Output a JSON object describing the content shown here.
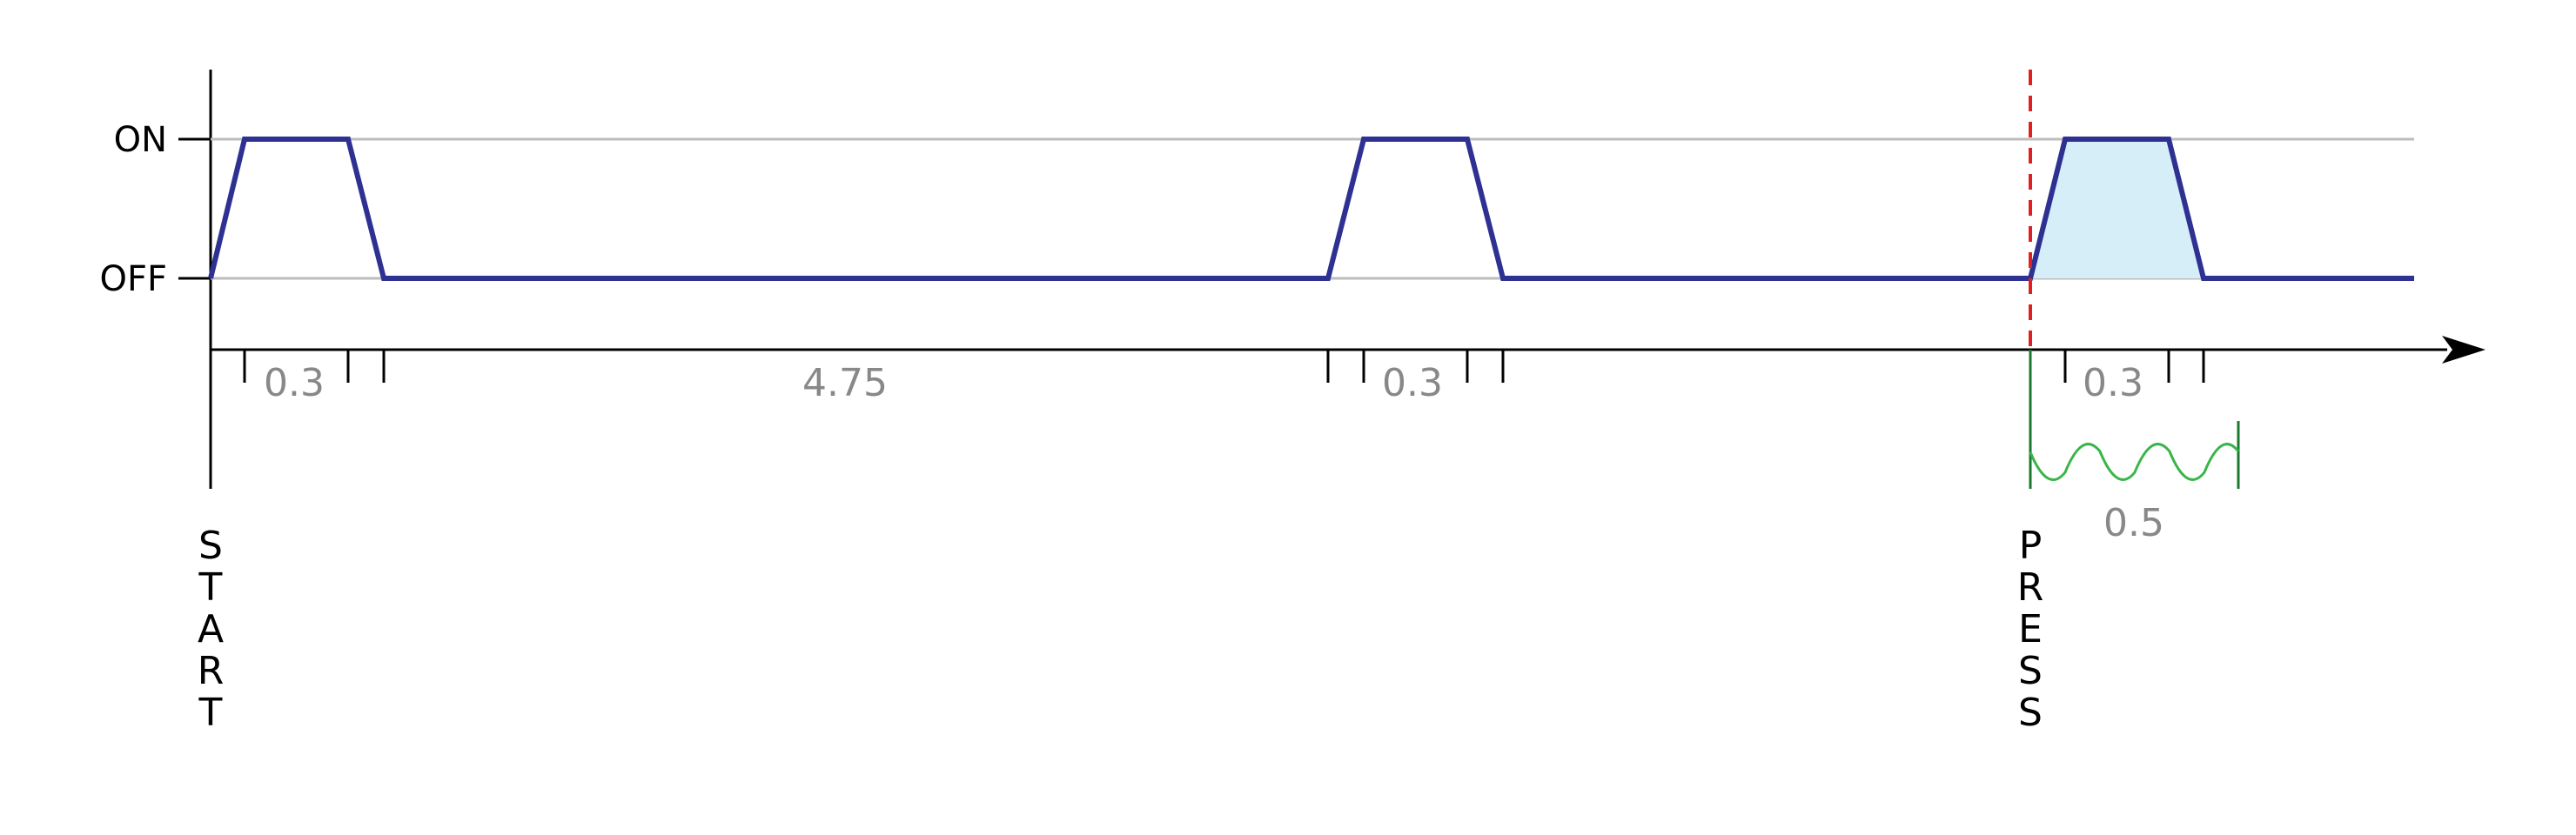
{
  "levels": {
    "on": "ON",
    "off": "OFF"
  },
  "durations": {
    "pulse1": "0.3",
    "gap": "4.75",
    "pulse2": "0.3",
    "pulse3": "0.3",
    "debounce": "0.5"
  },
  "markers": {
    "start": [
      "S",
      "T",
      "A",
      "R",
      "T"
    ],
    "press": [
      "P",
      "R",
      "E",
      "S",
      "S"
    ]
  },
  "colors": {
    "signal": "#2e3192",
    "highlight_fill": "#d6eef8",
    "press_line": "#e02020",
    "debounce_wave": "#39b54a",
    "debounce_bracket": "#1a7a2e",
    "duration_text": "#888888"
  }
}
